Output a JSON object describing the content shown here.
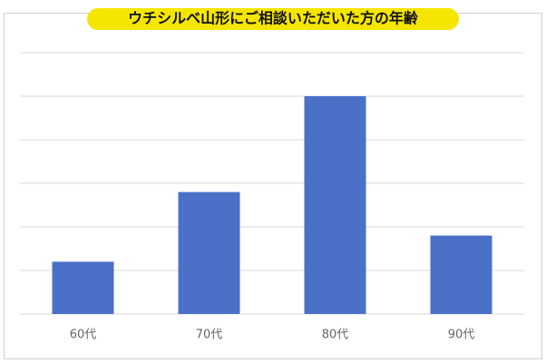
{
  "chart_data": {
    "type": "bar",
    "title": "ウチシルベ山形にご相談いただいた方の年齢",
    "categories": [
      "60代",
      "70代",
      "80代",
      "90代"
    ],
    "values": [
      1.2,
      2.8,
      5,
      1.8
    ],
    "color": "#4a70c8",
    "ylim": [
      0,
      6
    ],
    "yticks": [
      0,
      1,
      2,
      3,
      4,
      5,
      6
    ],
    "grid": true
  }
}
